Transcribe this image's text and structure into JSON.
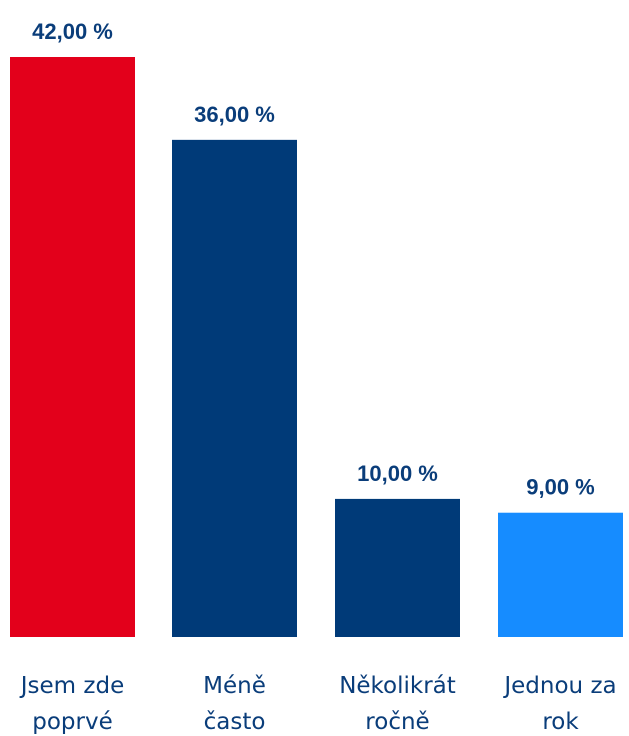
{
  "chart_data": {
    "type": "bar",
    "categories": [
      [
        "Jsem zde",
        "poprvé"
      ],
      [
        "Méně",
        "často"
      ],
      [
        "Několikrát",
        "ročně"
      ],
      [
        "Jednou za",
        "rok"
      ]
    ],
    "values": [
      42,
      36,
      10,
      9
    ],
    "value_labels": [
      "42,00 %",
      "36,00 %",
      "10,00 %",
      "9,00 %"
    ],
    "colors": [
      "#e3001b",
      "#003a78",
      "#003a78",
      "#168cff"
    ],
    "label_color": "#0a3d7a",
    "ylim": [
      0,
      42
    ],
    "grid": false,
    "title": "",
    "xlabel": "",
    "ylabel": ""
  }
}
